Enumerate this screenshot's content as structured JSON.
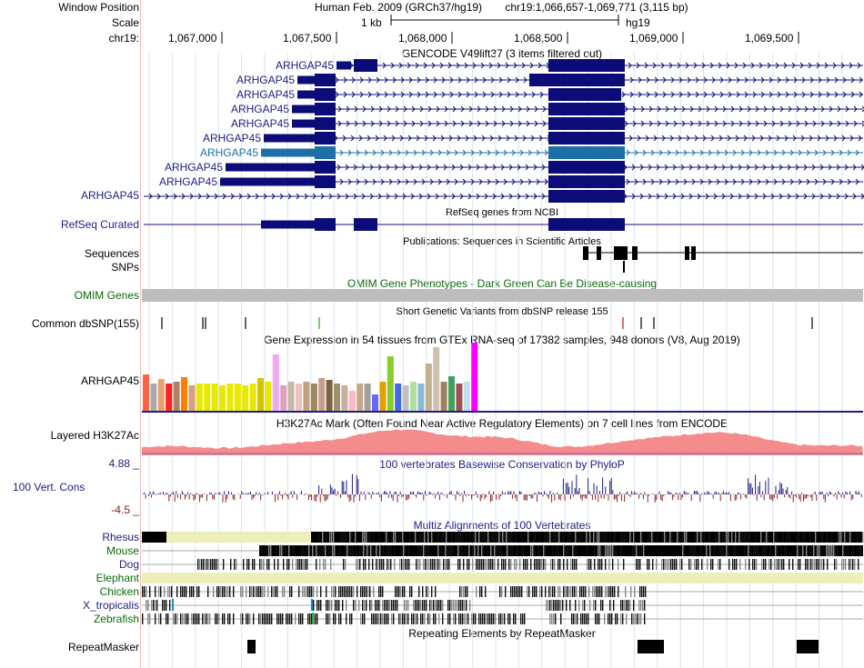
{
  "header": {
    "window_position_label": "Window Position",
    "scale_label": "Scale",
    "chrom_label": "chr19:",
    "assembly": "Human Feb. 2009 (GRCh37/hg19)",
    "position": "chr19:1,066,657-1,069,771 (3,115 bp)",
    "scale_text": "1 kb",
    "scale_db": "hg19",
    "ticks": [
      "1,067,000",
      "1,067,500",
      "1,068,000",
      "1,068,500",
      "1,069,000",
      "1,069,500"
    ]
  },
  "gencode": {
    "title": "GENCODE V49lift37 (3 items filtered out)",
    "gene_name": "ARHGAP45",
    "highlight_color": "#1d6fa8",
    "gene_color": "#0c0c78"
  },
  "refseq": {
    "label": "RefSeq Curated",
    "title": "RefSeq genes from NCBI"
  },
  "publications": {
    "title": "Publications: Sequences in Scientific Articles",
    "label1": "Sequences",
    "label2": "SNPs"
  },
  "omim": {
    "label": "OMIM Genes",
    "title": "OMIM Gene Phenotypes - Dark Green Can Be Disease-causing"
  },
  "dbsnp": {
    "label": "Common dbSNP(155)",
    "title": "Short Genetic Variants from dbSNP release 155"
  },
  "gtex": {
    "title": "Gene Expression in 54 tissues from GTEx RNA-seq of 17382 samples, 948 donors (V8, Aug 2019)",
    "gene": "ARHGAP45"
  },
  "h3k27ac": {
    "label": "Layered H3K27Ac",
    "title": "H3K27Ac Mark (Often Found Near Active Regulatory Elements) on 7 cell lines from ENCODE"
  },
  "cons": {
    "label": "100 Vert. Cons",
    "max": "4.88 _",
    "min": "-4.5 _",
    "title": "100 vertebrates Basewise Conservation by PhyloP"
  },
  "multiz": {
    "title": "Multiz Alignments of 100 Vertebrates",
    "species": [
      "Rhesus",
      "Mouse",
      "Dog",
      "Elephant",
      "Chicken",
      "X_tropicalis",
      "Zebrafish"
    ]
  },
  "repeatmasker": {
    "label": "RepeatMasker",
    "title": "Repeating Elements by RepeatMasker"
  }
}
